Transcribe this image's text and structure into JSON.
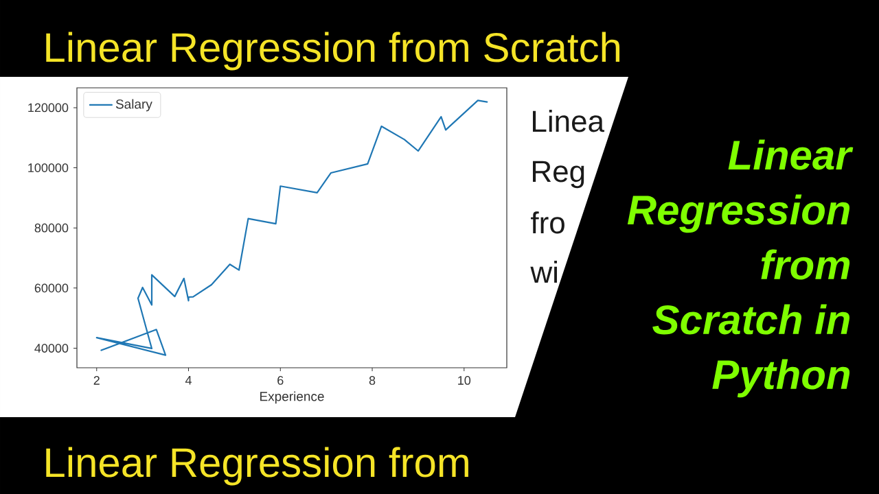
{
  "chart_data": {
    "type": "line",
    "title": "Linear Regression from Scratch",
    "xlabel": "Experience",
    "annotations": [
      "Linear Regression from Scratch in Python",
      "Linear Regression from",
      "Linea",
      "Reg",
      "fro",
      "wi"
    ],
    "x": [
      2.1,
      3.3,
      3.5,
      2.0,
      3.2,
      2.9,
      3.0,
      3.2,
      3.2,
      3.7,
      3.9,
      4.0,
      4.0,
      4.1,
      4.5,
      4.9,
      5.1,
      5.3,
      5.9,
      6.0,
      6.8,
      7.1,
      7.9,
      8.2,
      8.7,
      9.0,
      9.5,
      9.6,
      10.3,
      10.5
    ],
    "series": [
      {
        "name": "Salary",
        "color": "#1f77b4",
        "values": [
          39300,
          46200,
          37700,
          43500,
          39900,
          56600,
          60200,
          54400,
          64400,
          57200,
          63200,
          55800,
          57000,
          57100,
          61100,
          67900,
          66000,
          83100,
          81400,
          93900,
          91700,
          98300,
          101300,
          113800,
          109400,
          105600,
          117000,
          112600,
          122400,
          121900
        ]
      }
    ],
    "xlim": [
      1.57,
      10.93
    ],
    "ylim": [
      33500,
      126600
    ],
    "xticks": [
      2,
      4,
      6,
      8,
      10
    ],
    "yticks": [
      40000,
      60000,
      80000,
      100000,
      120000
    ],
    "legend": "top left",
    "line_style": "solid"
  }
}
